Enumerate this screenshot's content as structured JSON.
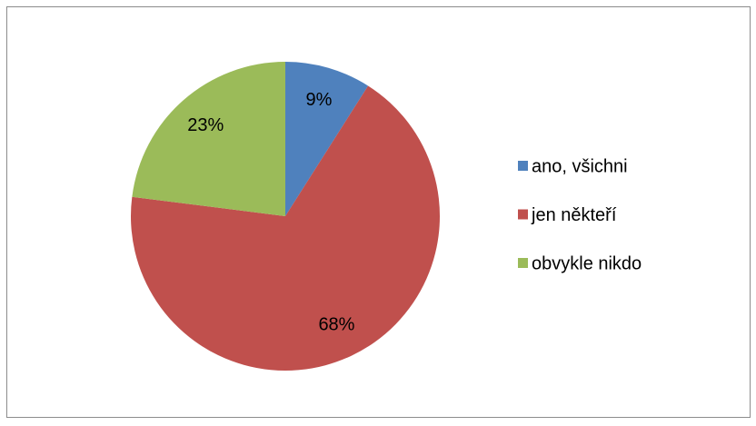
{
  "chart_data": {
    "type": "pie",
    "categories": [
      "ano, všichni",
      "jen někteří",
      "obvykle nikdo"
    ],
    "values": [
      9,
      68,
      23
    ],
    "value_labels": [
      "9%",
      "68%",
      "23%"
    ],
    "colors": [
      "#4f81bd",
      "#c0504d",
      "#9bbb59"
    ],
    "legend": "right"
  }
}
